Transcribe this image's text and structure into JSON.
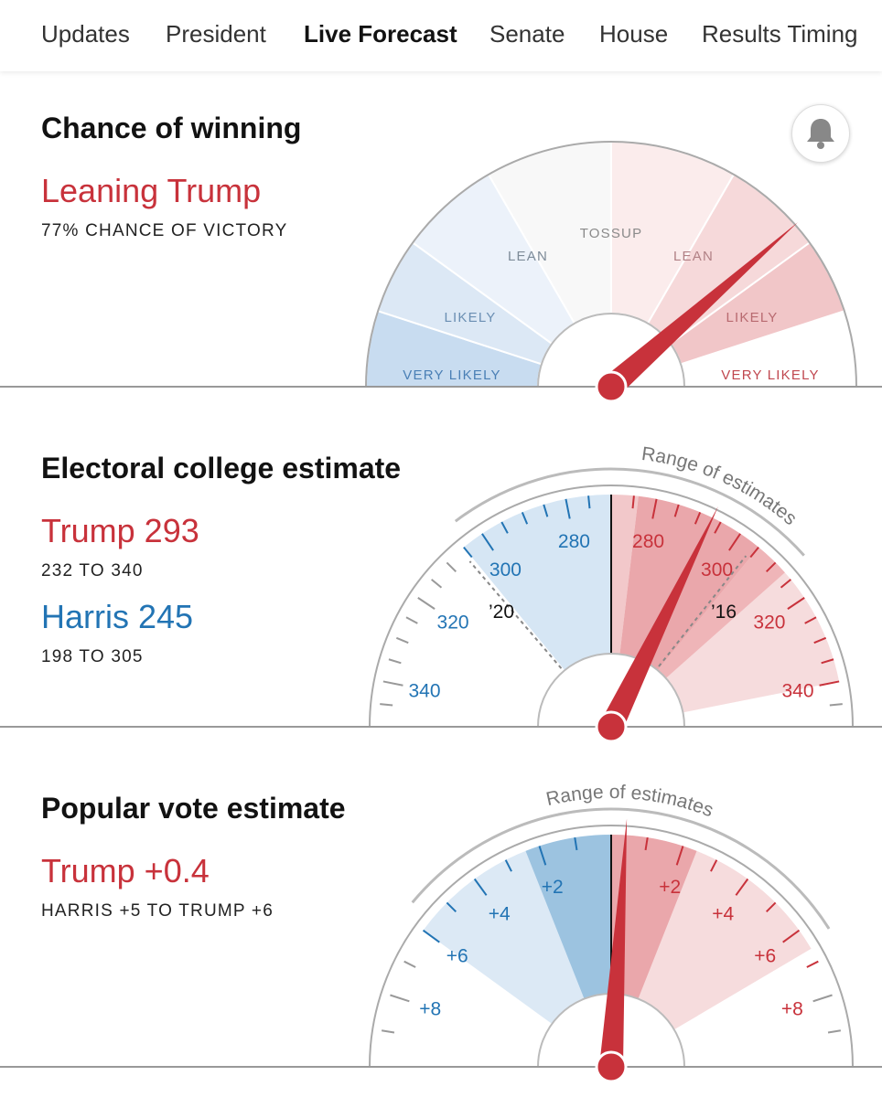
{
  "nav": {
    "tabs": [
      {
        "label": "Updates",
        "active": false
      },
      {
        "label": "President",
        "active": false
      },
      {
        "label": "Live Forecast",
        "active": true
      },
      {
        "label": "Senate",
        "active": false
      },
      {
        "label": "House",
        "active": false
      },
      {
        "label": "Results Timing",
        "active": false
      }
    ]
  },
  "chance": {
    "title": "Chance of winning",
    "headline": "Leaning Trump",
    "subline": "77% CHANCE OF VICTORY",
    "value_pct": 77,
    "bell_icon": "bell-icon",
    "zones": [
      "VERY LIKELY",
      "LIKELY",
      "LEAN",
      "TOSSUP",
      "LEAN",
      "LIKELY",
      "VERY LIKELY"
    ]
  },
  "electoral": {
    "title": "Electoral college estimate",
    "trump_label": "Trump 293",
    "trump_range": "232 TO 340",
    "harris_label": "Harris 245",
    "harris_range": "198 TO 305",
    "range_label": "Range of estimates",
    "ticks_left": [
      "340",
      "320",
      "300",
      "280"
    ],
    "ticks_right": [
      "280",
      "300",
      "320",
      "340"
    ],
    "marker_2020": "’20",
    "marker_2016": "’16",
    "trump_estimate": 293
  },
  "popular": {
    "title": "Popular vote estimate",
    "headline": "Trump +0.4",
    "subline": "HARRIS +5 TO TRUMP +6",
    "range_label": "Range of estimates",
    "ticks_left": [
      "+8",
      "+6",
      "+4",
      "+2"
    ],
    "ticks_right": [
      "+2",
      "+4",
      "+6",
      "+8"
    ],
    "estimate": 0.4
  },
  "colors": {
    "red": "#c8323b",
    "blue": "#2274b4",
    "needle": "#c8323b"
  }
}
